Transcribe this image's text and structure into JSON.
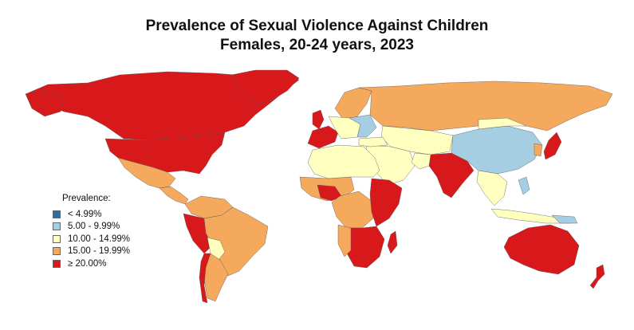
{
  "title": "Prevalence of Sexual Violence Against Children",
  "subtitle": "Females, 20-24 years, 2023",
  "legend": {
    "title": "Prevalence:",
    "items": [
      {
        "label": "< 4.99%",
        "color": "#2b6fa6"
      },
      {
        "label": "5.00 - 9.99%",
        "color": "#a6cee3"
      },
      {
        "label": "10.00 - 14.99%",
        "color": "#ffffc0"
      },
      {
        "label": "15.00 - 19.99%",
        "color": "#f5a95c"
      },
      {
        "label": "≥ 20.00%",
        "color": "#d7191c"
      }
    ]
  }
}
